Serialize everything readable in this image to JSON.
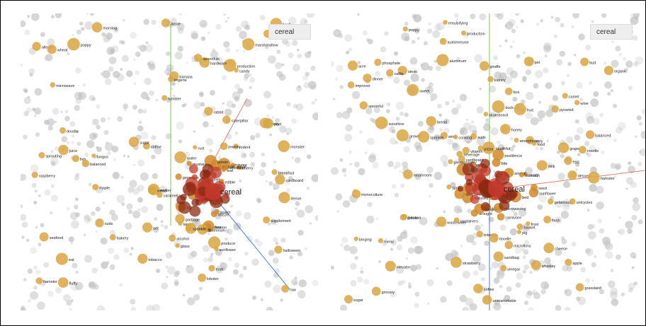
{
  "colors": {
    "highlight_red": "#c0392b",
    "highlight_orange": "#d08a2a",
    "neighbor_gold": "#d9a441",
    "background_point": "#bdbdbd",
    "axis_green": "#7ac94f",
    "axis_blue": "#4a80d0",
    "axis_red": "#e08070"
  },
  "panels": [
    {
      "search": {
        "value": "cereal"
      },
      "chart_data": {
        "type": "scatter",
        "focus_label": "cereal",
        "labels": [
          "wheaten",
          "pet",
          "hamster",
          "pig",
          "rabbit",
          "cattle",
          "rodent",
          "morning",
          "rose",
          "produce",
          "production",
          "doodle",
          "easter",
          "halloween",
          "carnivore",
          "insect",
          "caterpillar",
          "fish",
          "bowl",
          "lobster",
          "seafood",
          "lamb",
          "breakfast",
          "raw",
          "supplement",
          "sprouting",
          "balanced",
          "generous",
          "dense",
          "monster",
          "weed",
          "baby",
          "cardboard",
          "box",
          "apple",
          "poppy",
          "leaf",
          "maple",
          "water",
          "cherry",
          "bakery",
          "raspberry",
          "drizzle",
          "eat",
          "garbage",
          "cooking",
          "beef",
          "banana",
          "mustard",
          "candy",
          "juice",
          "grape",
          "peel",
          "marshmallow",
          "aluminum",
          "hardware",
          "glass",
          "jewelry",
          "lingerie",
          "fluffy",
          "portioned",
          "microwave",
          "suds",
          "sprinkle",
          "spoonfuls",
          "caramelize",
          "orange",
          "rust",
          "coffee",
          "beverage",
          "tumbler",
          "tobacco",
          "alcohol",
          "fungus",
          "allergic",
          "potato",
          "sunflower",
          "edible",
          "cereal",
          "sugar",
          "wheat"
        ],
        "xlim": [
          0,
          1
        ],
        "ylim": [
          0,
          1
        ],
        "grid": false
      }
    },
    {
      "search": {
        "value": "cereal"
      },
      "chart_data": {
        "type": "scatter",
        "focus_label": "cereal",
        "labels": [
          "spring",
          "elevator",
          "pyramid",
          "farm",
          "acre",
          "grassland",
          "frost",
          "drought",
          "sunshine",
          "bed",
          "production",
          "balanced",
          "reduced",
          "growth",
          "whiskey",
          "beverage",
          "wine",
          "coffee",
          "suds",
          "grape",
          "wine",
          "tobacco",
          "bud",
          "strawberry",
          "seed",
          "fruit",
          "cheese",
          "basket",
          "skateboard",
          "box",
          "rattle",
          "sandbag",
          "banana",
          "juice",
          "egg",
          "mushroom",
          "dandelion",
          "apple",
          "poppy",
          "pestilence",
          "binging",
          "dinner",
          "healthful",
          "sweet",
          "tasty",
          "food",
          "honey",
          "vinegar",
          "candy",
          "dessert",
          "sugar",
          "salad",
          "cooking",
          "noodle",
          "pizza",
          "steak",
          "bread",
          "milk",
          "cereal",
          "potato",
          "sunflower",
          "aluminum",
          "kidney",
          "fungus",
          "autoimmune",
          "microflora",
          "vitamin",
          "monoculture",
          "unmarketable",
          "carnivore",
          "phosphate",
          "giraffe",
          "gelatinous",
          "amorphous",
          "organic",
          "microwaving",
          "emulsifying",
          "hamster",
          "animal",
          "duck",
          "pet",
          "doodle",
          "grocery",
          "menu",
          "cardboard",
          "camel",
          "cattle",
          "pig",
          "spoonful",
          "bite",
          "flesh",
          "unicycles",
          "stomach",
          "postboxes",
          "grinder",
          "sprinkle",
          "greengrocery",
          "improver",
          "wastewater",
          "containers"
        ],
        "xlim": [
          0,
          1
        ],
        "ylim": [
          0,
          1
        ],
        "grid": false
      }
    }
  ]
}
